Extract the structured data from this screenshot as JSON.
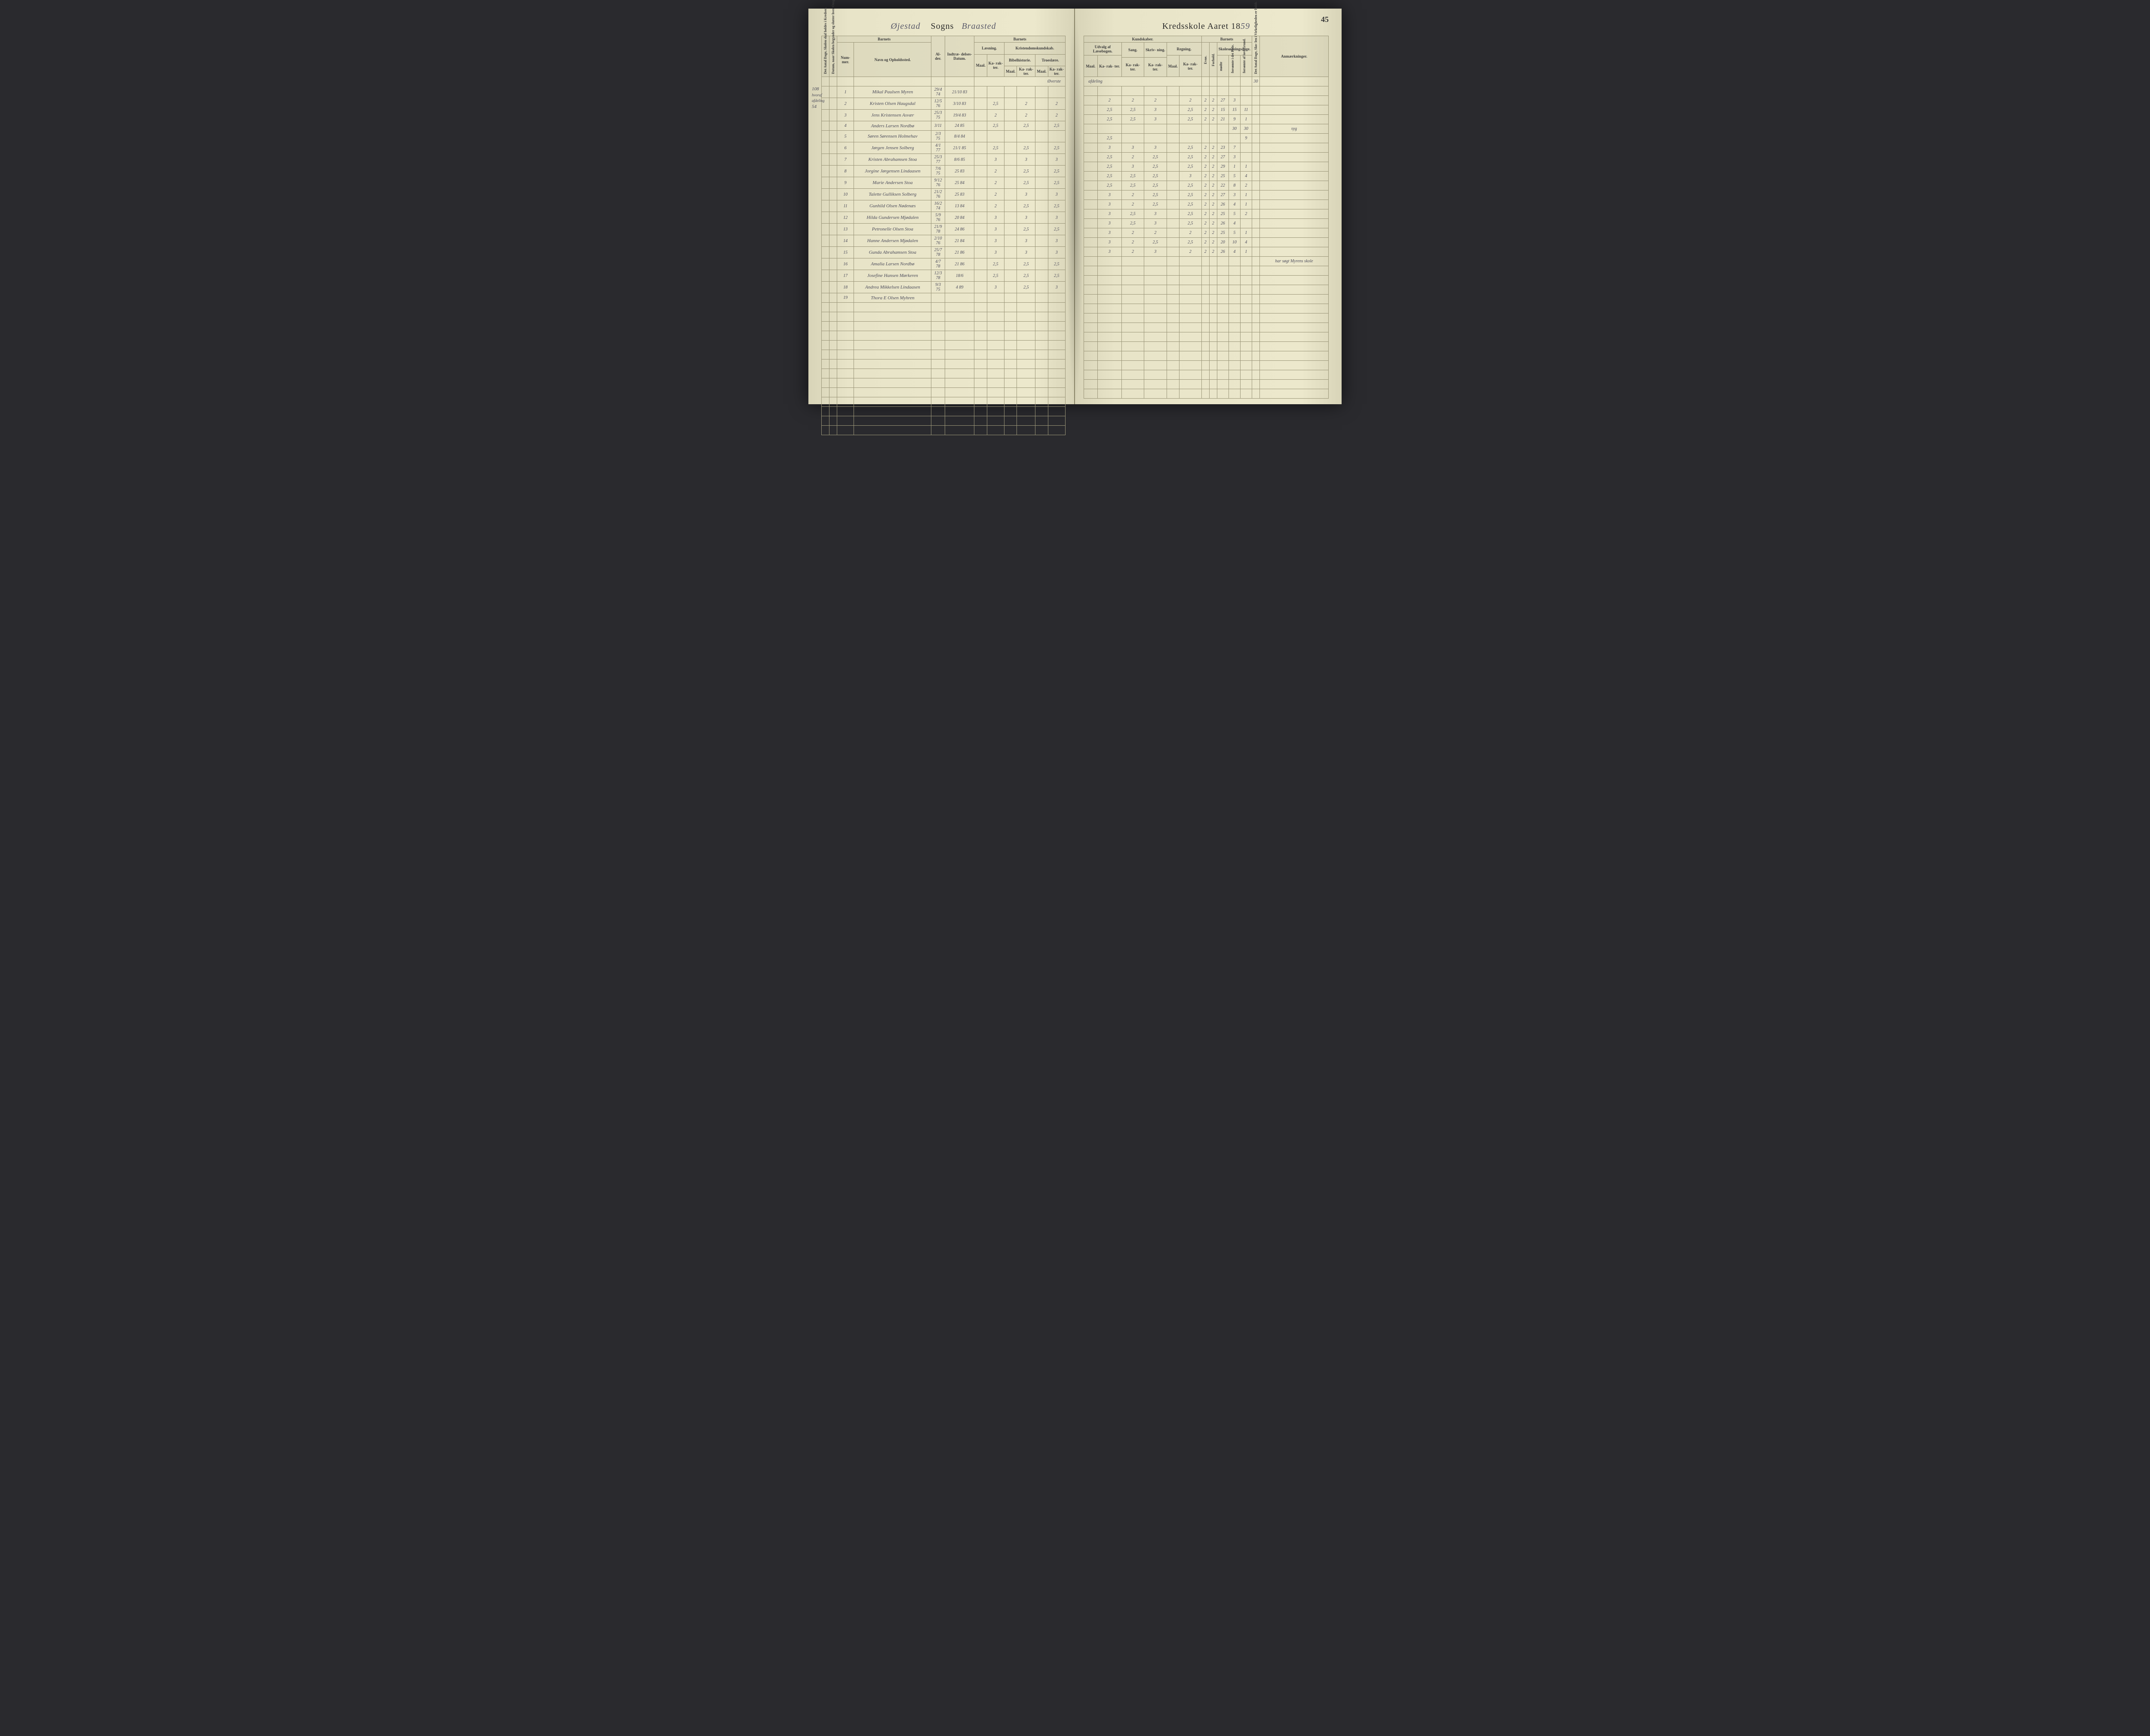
{
  "pageNumber": "45",
  "titleLeft": {
    "handwritten": "Øjestad",
    "printed": "Sogns",
    "handwritten2": "Braasted"
  },
  "titleRight": {
    "printed": "Kredsskole Aaret 18",
    "handwritten": "59"
  },
  "marginNote": {
    "line1": "108",
    "line2": "hvoraf",
    "line3": "afdeling",
    "line4": "54"
  },
  "headers": {
    "barnets": "Barnets",
    "kundskaber": "Kundskaber.",
    "laesning": "Læsning.",
    "kristendom": "Kristendomskundskab.",
    "udvalg": "Udvalg af Læsebogen.",
    "sang": "Sang.",
    "skrivning": "Skriv-\nning.",
    "regning": "Regning.",
    "skolesogning": "Skolesøgningsdage.",
    "anmaerkninger": "Anmærkninger.",
    "antalDage": "Det Antal Dage, Skolen skal holdes i Kredsen.",
    "datumNaar": "Datum, naar Skolen begynder og slutter hver Omgang.",
    "nummer": "Num-\nmer.",
    "navn": "Navn og Opholdssted.",
    "alder": "Al-\nder.",
    "indtraedelse": "Indtræ-\ndelses-\nDatum.",
    "maal": "Maal.",
    "karakter": "Ka-\nrak-\nter.",
    "bibelhistorie": "Bibelhistorie.",
    "troeslaere": "Troeslære.",
    "evne": "Evne.",
    "forhold": "Forhold.",
    "modte": "mødte",
    "forsomteHele": "forsømte i det Hele.",
    "forsomteGrund": "forsømte af lovl Grund.",
    "antalDageVirk": "Det Antal Dage, Sko-\nlen i Virkeligheden er holdt."
  },
  "sectionTitle": "Øverste afdeling",
  "topRight30": "30",
  "rows": [
    {
      "n": "1",
      "name": "Mikal Paulsen Myren",
      "ald": "29/4 74",
      "ind": "21/10 83",
      "l_m": "",
      "l_k": "",
      "b_m": "",
      "b_k": "",
      "t_m": "",
      "t_k": "",
      "u_m": "",
      "u_k": "",
      "sa": "",
      "sk": "",
      "r_m": "",
      "r_k": "",
      "ev": "",
      "fo": "",
      "mo": "",
      "fh": "",
      "fg": "",
      "rem": ""
    },
    {
      "n": "2",
      "name": "Kristen Olsen Haugsdal",
      "ald": "12/5 76",
      "ind": "3/10 83",
      "l_m": "",
      "l_k": "2,5",
      "b_m": "",
      "b_k": "2",
      "t_m": "",
      "t_k": "2",
      "u_m": "",
      "u_k": "2",
      "sa": "2",
      "sk": "2",
      "r_m": "",
      "r_k": "2",
      "ev": "2",
      "fo": "2",
      "mo": "27",
      "fh": "3",
      "fg": "",
      "rem": ""
    },
    {
      "n": "3",
      "name": "Jens Kristensen Asvær",
      "ald": "25/3 75",
      "ind": "19/4 83",
      "l_m": "",
      "l_k": "2",
      "b_m": "",
      "b_k": "2",
      "t_m": "",
      "t_k": "2",
      "u_m": "",
      "u_k": "2,5",
      "sa": "2,5",
      "sk": "3",
      "r_m": "",
      "r_k": "2,5",
      "ev": "2",
      "fo": "2",
      "mo": "15",
      "fh": "15",
      "fg": "11",
      "rem": ""
    },
    {
      "n": "4",
      "name": "Anders Larsen Nordbø",
      "ald": "3/11",
      "ind": "24 85",
      "l_m": "",
      "l_k": "2,5",
      "b_m": "",
      "b_k": "2,5",
      "t_m": "",
      "t_k": "2,5",
      "u_m": "",
      "u_k": "2,5",
      "sa": "2,5",
      "sk": "3",
      "r_m": "",
      "r_k": "2,5",
      "ev": "2",
      "fo": "2",
      "mo": "21",
      "fh": "9",
      "fg": "1",
      "rem": ""
    },
    {
      "n": "5",
      "name": "Søren Sørensen Holmehav",
      "ald": "2/3 75",
      "ind": "8/4 84",
      "l_m": "",
      "l_k": "",
      "b_m": "",
      "b_k": "",
      "t_m": "",
      "t_k": "",
      "u_m": "",
      "u_k": "",
      "sa": "",
      "sk": "",
      "r_m": "",
      "r_k": "",
      "ev": "",
      "fo": "",
      "mo": "",
      "fh": "30",
      "fg": "30",
      "rem": "syg"
    },
    {
      "n": "6",
      "name": "Jørgen Jensen Solberg",
      "ald": "4/1 77",
      "ind": "21/1 85",
      "l_m": "",
      "l_k": "2,5",
      "b_m": "",
      "b_k": "2,5",
      "t_m": "",
      "t_k": "2,5",
      "u_m": "",
      "u_k": "2,5",
      "sa": "",
      "sk": "",
      "r_m": "",
      "r_k": "",
      "ev": "",
      "fo": "",
      "mo": "",
      "fh": "",
      "fg": "9",
      "rem": ""
    },
    {
      "n": "7",
      "name": "Kristen Abrahamsen Stoa",
      "ald": "25/3 77",
      "ind": "8/6 85",
      "l_m": "",
      "l_k": "3",
      "b_m": "",
      "b_k": "3",
      "t_m": "",
      "t_k": "3",
      "u_m": "",
      "u_k": "3",
      "sa": "3",
      "sk": "3",
      "r_m": "",
      "r_k": "2,5",
      "ev": "2",
      "fo": "2",
      "mo": "23",
      "fh": "7",
      "fg": "",
      "rem": ""
    },
    {
      "n": "8",
      "name": "Jorgine Jørgensen Lindaasen",
      "ald": "7/6 75",
      "ind": "25 83",
      "l_m": "",
      "l_k": "2",
      "b_m": "",
      "b_k": "2,5",
      "t_m": "",
      "t_k": "2,5",
      "u_m": "",
      "u_k": "2,5",
      "sa": "2",
      "sk": "2,5",
      "r_m": "",
      "r_k": "2,5",
      "ev": "2",
      "fo": "2",
      "mo": "27",
      "fh": "3",
      "fg": "",
      "rem": ""
    },
    {
      "n": "9",
      "name": "Marie Andersen Stoa",
      "ald": "9/12 76",
      "ind": "25 84",
      "l_m": "",
      "l_k": "2",
      "b_m": "",
      "b_k": "2,5",
      "t_m": "",
      "t_k": "2,5",
      "u_m": "",
      "u_k": "2,5",
      "sa": "3",
      "sk": "2,5",
      "r_m": "",
      "r_k": "2,5",
      "ev": "2",
      "fo": "2",
      "mo": "29",
      "fh": "1",
      "fg": "1",
      "rem": ""
    },
    {
      "n": "10",
      "name": "Talette Gulliksen Solberg",
      "ald": "21/2 76",
      "ind": "25 83",
      "l_m": "",
      "l_k": "2",
      "b_m": "",
      "b_k": "3",
      "t_m": "",
      "t_k": "3",
      "u_m": "",
      "u_k": "2,5",
      "sa": "2,5",
      "sk": "2,5",
      "r_m": "",
      "r_k": "3",
      "ev": "2",
      "fo": "2",
      "mo": "25",
      "fh": "5",
      "fg": "4",
      "rem": ""
    },
    {
      "n": "11",
      "name": "Gunhild Olsen Nødenæs",
      "ald": "16/2 74",
      "ind": "13 84",
      "l_m": "",
      "l_k": "2",
      "b_m": "",
      "b_k": "2,5",
      "t_m": "",
      "t_k": "2,5",
      "u_m": "",
      "u_k": "2,5",
      "sa": "2,5",
      "sk": "2,5",
      "r_m": "",
      "r_k": "2,5",
      "ev": "2",
      "fo": "2",
      "mo": "22",
      "fh": "8",
      "fg": "2",
      "rem": ""
    },
    {
      "n": "12",
      "name": "Hilda Gundersen Mjødalen",
      "ald": "5/9 76",
      "ind": "20 84",
      "l_m": "",
      "l_k": "3",
      "b_m": "",
      "b_k": "3",
      "t_m": "",
      "t_k": "3",
      "u_m": "",
      "u_k": "3",
      "sa": "2",
      "sk": "2,5",
      "r_m": "",
      "r_k": "2,5",
      "ev": "2",
      "fo": "2",
      "mo": "27",
      "fh": "3",
      "fg": "1",
      "rem": ""
    },
    {
      "n": "13",
      "name": "Petronelle Olsen Stoa",
      "ald": "21/9 78",
      "ind": "24 86",
      "l_m": "",
      "l_k": "3",
      "b_m": "",
      "b_k": "2,5",
      "t_m": "",
      "t_k": "2,5",
      "u_m": "",
      "u_k": "3",
      "sa": "2",
      "sk": "2,5",
      "r_m": "",
      "r_k": "2,5",
      "ev": "2",
      "fo": "2",
      "mo": "26",
      "fh": "4",
      "fg": "1",
      "rem": ""
    },
    {
      "n": "14",
      "name": "Hanne Andersen Mjødalen",
      "ald": "2/10 76",
      "ind": "21 84",
      "l_m": "",
      "l_k": "3",
      "b_m": "",
      "b_k": "3",
      "t_m": "",
      "t_k": "3",
      "u_m": "",
      "u_k": "3",
      "sa": "2,5",
      "sk": "3",
      "r_m": "",
      "r_k": "2,5",
      "ev": "2",
      "fo": "2",
      "mo": "25",
      "fh": "5",
      "fg": "2",
      "rem": ""
    },
    {
      "n": "15",
      "name": "Gunda Abrahamsen Stoa",
      "ald": "25/7 78",
      "ind": "21 86",
      "l_m": "",
      "l_k": "3",
      "b_m": "",
      "b_k": "3",
      "t_m": "",
      "t_k": "3",
      "u_m": "",
      "u_k": "3",
      "sa": "2,5",
      "sk": "3",
      "r_m": "",
      "r_k": "2,5",
      "ev": "2",
      "fo": "2",
      "mo": "26",
      "fh": "4",
      "fg": "",
      "rem": ""
    },
    {
      "n": "16",
      "name": "Amalia Larsen Nordbø",
      "ald": "4/7 78",
      "ind": "21 86",
      "l_m": "",
      "l_k": "2,5",
      "b_m": "",
      "b_k": "2,5",
      "t_m": "",
      "t_k": "2,5",
      "u_m": "",
      "u_k": "3",
      "sa": "2",
      "sk": "2",
      "r_m": "",
      "r_k": "2",
      "ev": "2",
      "fo": "2",
      "mo": "25",
      "fh": "5",
      "fg": "1",
      "rem": ""
    },
    {
      "n": "17",
      "name": "Josefine Hansen Mørkeren",
      "ald": "12/3 78",
      "ind": "18/6",
      "l_m": "",
      "l_k": "2,5",
      "b_m": "",
      "b_k": "2,5",
      "t_m": "",
      "t_k": "2,5",
      "u_m": "",
      "u_k": "3",
      "sa": "2",
      "sk": "2,5",
      "r_m": "",
      "r_k": "2,5",
      "ev": "2",
      "fo": "2",
      "mo": "20",
      "fh": "10",
      "fg": "4",
      "rem": ""
    },
    {
      "n": "18",
      "name": "Andrea Mikkelsen Lindaasen",
      "ald": "9/3 75",
      "ind": "4 89",
      "l_m": "",
      "l_k": "3",
      "b_m": "",
      "b_k": "2,5",
      "t_m": "",
      "t_k": "3",
      "u_m": "",
      "u_k": "3",
      "sa": "2",
      "sk": "3",
      "r_m": "",
      "r_k": "2",
      "ev": "2",
      "fo": "2",
      "mo": "26",
      "fh": "4",
      "fg": "1",
      "rem": ""
    },
    {
      "n": "19",
      "name": "Thora E Olsen Myhren",
      "ald": "",
      "ind": "",
      "l_m": "",
      "l_k": "",
      "b_m": "",
      "b_k": "",
      "t_m": "",
      "t_k": "",
      "u_m": "",
      "u_k": "",
      "sa": "",
      "sk": "",
      "r_m": "",
      "r_k": "",
      "ev": "",
      "fo": "",
      "mo": "",
      "fh": "",
      "fg": "",
      "rem": "har søgt Myrens skole"
    }
  ]
}
